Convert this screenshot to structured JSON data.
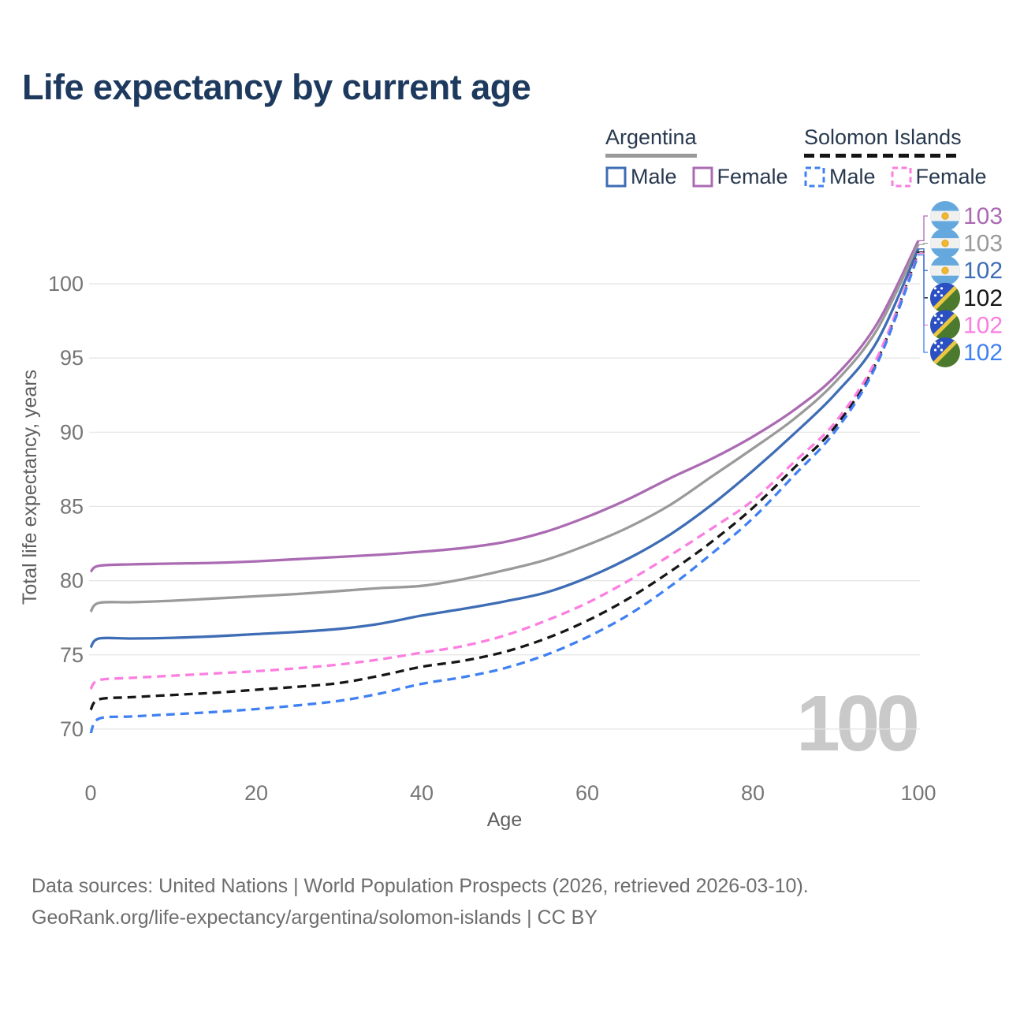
{
  "title": "Life expectancy by current age",
  "watermark": "100",
  "legend": {
    "groups": [
      {
        "country": "Argentina",
        "line_style": "solid",
        "underline_color": "#9a9a9a",
        "items": [
          {
            "label": "Male",
            "color": "#3e6db5"
          },
          {
            "label": "Female",
            "color": "#ab6bb3"
          }
        ]
      },
      {
        "country": "Solomon Islands",
        "line_style": "dashed",
        "underline_color": "#141414",
        "items": [
          {
            "label": "Male",
            "color": "#3f80f2"
          },
          {
            "label": "Female",
            "color": "#fb7ee0"
          }
        ]
      }
    ]
  },
  "footer": {
    "line1": "Data sources: United Nations | World Population Prospects (2026, retrieved 2026-03-10).",
    "line2": "GeoRank.org/life-expectancy/argentina/solomon-islands | CC BY"
  },
  "chart_data": {
    "type": "line",
    "title": "Life expectancy by current age",
    "xlabel": "Age",
    "ylabel": "Total life expectancy, years",
    "x_ticks": [
      0,
      20,
      40,
      60,
      80,
      100
    ],
    "y_ticks": [
      70,
      75,
      80,
      85,
      90,
      95,
      100
    ],
    "xlim": [
      0,
      100
    ],
    "ylim": [
      68.5,
      103.5
    ],
    "grid": true,
    "legend_position": "top-right",
    "ages": [
      0,
      1,
      5,
      10,
      15,
      20,
      25,
      30,
      35,
      40,
      45,
      50,
      55,
      60,
      65,
      70,
      75,
      80,
      85,
      90,
      95,
      100
    ],
    "series": [
      {
        "name": "Argentina Female",
        "country": "Argentina",
        "sex": "Female",
        "color": "#ab6bb3",
        "dashed": false,
        "end_label": "103",
        "flag": "argentina",
        "values": [
          80.6,
          81,
          81.1,
          81.15,
          81.2,
          81.3,
          81.45,
          81.6,
          81.75,
          81.95,
          82.2,
          82.6,
          83.3,
          84.3,
          85.5,
          86.9,
          88.2,
          89.7,
          91.5,
          93.8,
          97.3,
          102.9
        ]
      },
      {
        "name": "Argentina",
        "country": "Argentina",
        "sex": "Both",
        "color": "#9a9a9a",
        "dashed": false,
        "end_label": "103",
        "flag": "argentina",
        "values": [
          77.9,
          78.5,
          78.55,
          78.65,
          78.8,
          78.95,
          79.1,
          79.3,
          79.5,
          79.65,
          80.1,
          80.7,
          81.4,
          82.4,
          83.6,
          85.1,
          87,
          88.9,
          90.9,
          93.4,
          96.9,
          102.65
        ]
      },
      {
        "name": "Argentina Male",
        "country": "Argentina",
        "sex": "Male",
        "color": "#3e6db5",
        "dashed": false,
        "end_label": "102",
        "flag": "argentina",
        "values": [
          75.5,
          76.1,
          76.1,
          76.15,
          76.25,
          76.4,
          76.55,
          76.75,
          77.1,
          77.65,
          78.1,
          78.6,
          79.2,
          80.2,
          81.5,
          83.1,
          85.1,
          87.4,
          89.9,
          92.6,
          96.1,
          102.35
        ]
      },
      {
        "name": "Solomon Islands",
        "country": "Solomon Islands",
        "sex": "Both",
        "color": "#161616",
        "dashed": true,
        "end_label": "102",
        "flag": "solomon-islands",
        "values": [
          71.3,
          72,
          72.15,
          72.3,
          72.45,
          72.65,
          72.85,
          73.1,
          73.6,
          74.2,
          74.6,
          75.2,
          76.1,
          77.3,
          78.8,
          80.6,
          82.6,
          84.9,
          87.6,
          90.4,
          94.8,
          102.15
        ]
      },
      {
        "name": "Solomon Islands Female",
        "country": "Solomon Islands",
        "sex": "Female",
        "color": "#fb7ee0",
        "dashed": true,
        "end_label": "102",
        "flag": "solomon-islands",
        "values": [
          72.7,
          73.3,
          73.45,
          73.6,
          73.75,
          73.9,
          74.1,
          74.35,
          74.7,
          75.15,
          75.6,
          76.3,
          77.3,
          78.5,
          80,
          81.7,
          83.5,
          85.4,
          88,
          90.7,
          95,
          102.05
        ]
      },
      {
        "name": "Solomon Islands Male",
        "country": "Solomon Islands",
        "sex": "Male",
        "color": "#3f80f2",
        "dashed": true,
        "end_label": "102",
        "flag": "solomon-islands",
        "values": [
          69.7,
          70.7,
          70.85,
          71,
          71.15,
          71.35,
          71.6,
          71.9,
          72.4,
          73.05,
          73.5,
          74.1,
          75,
          76.2,
          77.7,
          79.6,
          81.8,
          84.2,
          87.1,
          90.1,
          94.6,
          101.95
        ]
      }
    ]
  }
}
